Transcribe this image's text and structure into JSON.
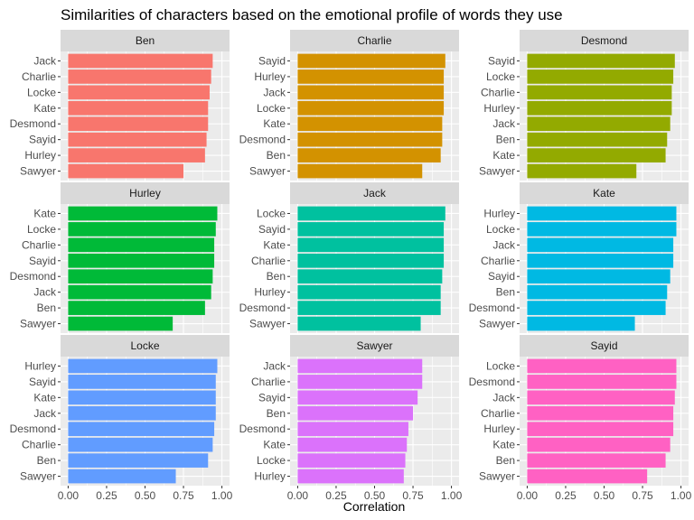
{
  "chart_data": {
    "type": "bar",
    "orientation": "horizontal",
    "title": "Similarities of characters based on the emotional profile of words they use",
    "xlabel": "Correlation",
    "ylabel": "",
    "xlim": [
      0,
      1
    ],
    "x_ticks": [
      "0.00",
      "0.25",
      "0.50",
      "0.75",
      "1.00"
    ],
    "grid": true,
    "legend": "none",
    "facets": [
      {
        "name": "Ben",
        "color": "#F8766D",
        "categories": [
          "Jack",
          "Charlie",
          "Locke",
          "Kate",
          "Desmond",
          "Sayid",
          "Hurley",
          "Sawyer"
        ],
        "values": [
          0.94,
          0.93,
          0.92,
          0.91,
          0.91,
          0.9,
          0.89,
          0.75
        ]
      },
      {
        "name": "Charlie",
        "color": "#D39200",
        "categories": [
          "Sayid",
          "Hurley",
          "Jack",
          "Locke",
          "Kate",
          "Desmond",
          "Ben",
          "Sawyer"
        ],
        "values": [
          0.96,
          0.95,
          0.95,
          0.95,
          0.94,
          0.94,
          0.93,
          0.81
        ]
      },
      {
        "name": "Desmond",
        "color": "#93AA00",
        "categories": [
          "Sayid",
          "Locke",
          "Charlie",
          "Hurley",
          "Jack",
          "Ben",
          "Kate",
          "Sawyer"
        ],
        "values": [
          0.96,
          0.95,
          0.94,
          0.94,
          0.93,
          0.91,
          0.9,
          0.71
        ]
      },
      {
        "name": "Hurley",
        "color": "#00BA38",
        "categories": [
          "Kate",
          "Locke",
          "Charlie",
          "Sayid",
          "Desmond",
          "Jack",
          "Ben",
          "Sawyer"
        ],
        "values": [
          0.97,
          0.96,
          0.95,
          0.95,
          0.94,
          0.93,
          0.89,
          0.68
        ]
      },
      {
        "name": "Jack",
        "color": "#00C19F",
        "categories": [
          "Locke",
          "Sayid",
          "Kate",
          "Charlie",
          "Ben",
          "Hurley",
          "Desmond",
          "Sawyer"
        ],
        "values": [
          0.96,
          0.95,
          0.95,
          0.95,
          0.94,
          0.93,
          0.93,
          0.8
        ]
      },
      {
        "name": "Kate",
        "color": "#00B9E3",
        "categories": [
          "Hurley",
          "Locke",
          "Jack",
          "Charlie",
          "Sayid",
          "Ben",
          "Desmond",
          "Sawyer"
        ],
        "values": [
          0.97,
          0.97,
          0.95,
          0.95,
          0.93,
          0.91,
          0.9,
          0.7
        ]
      },
      {
        "name": "Locke",
        "color": "#619CFF",
        "categories": [
          "Hurley",
          "Sayid",
          "Kate",
          "Jack",
          "Desmond",
          "Charlie",
          "Ben",
          "Sawyer"
        ],
        "values": [
          0.97,
          0.96,
          0.96,
          0.96,
          0.95,
          0.94,
          0.91,
          0.7
        ]
      },
      {
        "name": "Sawyer",
        "color": "#DB72FB",
        "categories": [
          "Jack",
          "Charlie",
          "Sayid",
          "Ben",
          "Desmond",
          "Kate",
          "Locke",
          "Hurley"
        ],
        "values": [
          0.81,
          0.81,
          0.78,
          0.75,
          0.72,
          0.71,
          0.7,
          0.69
        ]
      },
      {
        "name": "Sayid",
        "color": "#FF61C3",
        "categories": [
          "Locke",
          "Desmond",
          "Jack",
          "Charlie",
          "Hurley",
          "Kate",
          "Ben",
          "Sawyer"
        ],
        "values": [
          0.97,
          0.97,
          0.96,
          0.95,
          0.95,
          0.93,
          0.9,
          0.78
        ]
      }
    ]
  }
}
